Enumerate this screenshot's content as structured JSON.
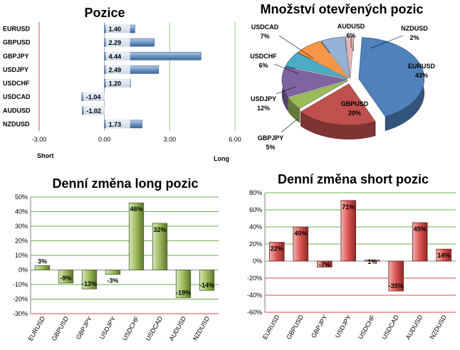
{
  "chart_data": [
    {
      "type": "bar",
      "orientation": "horizontal",
      "title": "Pozice",
      "categories": [
        "EURUSD",
        "GBPUSD",
        "GBPJPY",
        "USDJPY",
        "USDCHF",
        "USDCAD",
        "AUDUSD",
        "NZDUSD"
      ],
      "values": [
        1.4,
        2.29,
        4.44,
        2.49,
        1.2,
        -1.04,
        -1.02,
        1.73
      ],
      "value_labels": [
        "1.40",
        "2.29",
        "4.44",
        "2.49",
        "1.20",
        "-1.04",
        "-1.02",
        "1.73"
      ],
      "xlim": [
        -3,
        6
      ],
      "x_ticks": [
        -3,
        0,
        3,
        6
      ],
      "x_tick_labels": [
        "-3.00",
        "0.00",
        "3.00",
        "6.00"
      ],
      "left_label": "Short",
      "right_label": "Long",
      "bar_color": "#4f81bd"
    },
    {
      "type": "pie",
      "title": "Množství otevřených pozic",
      "labels": [
        "EURUSD",
        "GBPUSD",
        "GBPJPY",
        "USDJPY",
        "USDCHF",
        "USDCAD",
        "AUDUSD",
        "NZDUSD"
      ],
      "values": [
        43,
        20,
        5,
        12,
        6,
        7,
        6,
        2
      ],
      "value_labels": [
        "43%",
        "20%",
        "5%",
        "12%",
        "6%",
        "7%",
        "6%",
        "2%"
      ],
      "colors": [
        "#4f81bd",
        "#c0504d",
        "#9bbb59",
        "#8064a2",
        "#4bacc6",
        "#f79646",
        "#95b3d7",
        "#e6b9b8"
      ]
    },
    {
      "type": "bar",
      "title": "Denní změna long pozic",
      "categories": [
        "EURUSD",
        "GBPUSD",
        "GBPJPY",
        "USDJPY",
        "USDCHF",
        "USDCAD",
        "AUDUSD",
        "NZDUSD"
      ],
      "values": [
        3,
        -9,
        -13,
        -3,
        46,
        32,
        -19,
        -14
      ],
      "value_labels": [
        "3%",
        "-9%",
        "-13%",
        "-3%",
        "46%",
        "32%",
        "-19%",
        "-14%"
      ],
      "ylim": [
        -30,
        50
      ],
      "y_ticks": [
        -30,
        -20,
        -10,
        0,
        10,
        20,
        30,
        40,
        50
      ],
      "y_tick_labels": [
        "-30%",
        "-20%",
        "-10%",
        "0%",
        "10%",
        "20%",
        "30%",
        "40%",
        "50%"
      ],
      "bar_color": "#77933c"
    },
    {
      "type": "bar",
      "title": "Denní změna short pozic",
      "categories": [
        "EURUSD",
        "GBPUSD",
        "GBPJPY",
        "USDJPY",
        "USDCHF",
        "USDCAD",
        "AUDUSD",
        "NZDUSD"
      ],
      "values": [
        22,
        40,
        -7,
        71,
        1,
        -35,
        45,
        14
      ],
      "value_labels": [
        "22%",
        "40%",
        "-7%",
        "71%",
        "1%",
        "-35%",
        "45%",
        "14%"
      ],
      "ylim": [
        -60,
        80
      ],
      "y_ticks": [
        -60,
        -40,
        -20,
        0,
        20,
        40,
        60,
        80
      ],
      "y_tick_labels": [
        "-60%",
        "-40%",
        "-20%",
        "0%",
        "20%",
        "40%",
        "60%",
        "80%"
      ],
      "bar_color": "#c0504d"
    }
  ]
}
